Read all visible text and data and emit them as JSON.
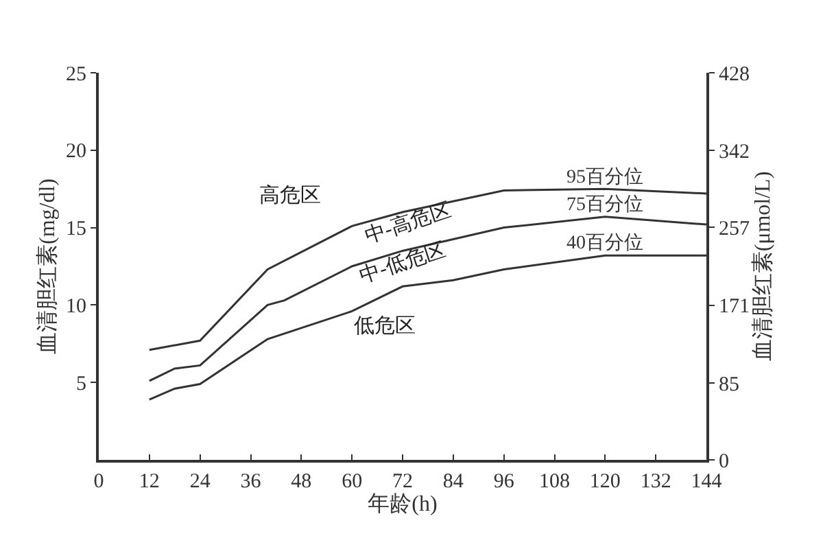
{
  "chart_data": {
    "type": "line",
    "xlabel": "年龄(h)",
    "ylabel": "血清胆红素(mg/dl)",
    "y2label": "血清胆红素(μmol/L)",
    "xlim": [
      0,
      144
    ],
    "xticks": [
      0,
      12,
      24,
      36,
      48,
      60,
      72,
      84,
      96,
      108,
      120,
      132,
      144
    ],
    "ylim": [
      0,
      25
    ],
    "yticks": [
      5,
      10,
      15,
      20,
      25
    ],
    "y2lim": [
      0,
      428
    ],
    "y2ticks": [
      0,
      85,
      171,
      257,
      342,
      428
    ],
    "series": [
      {
        "name": "95百分位",
        "color": "#333333",
        "x": [
          12,
          24,
          40,
          60,
          72,
          96,
          120,
          144
        ],
        "values": [
          7.1,
          7.7,
          12.3,
          15.1,
          16.0,
          17.4,
          17.5,
          17.2
        ]
      },
      {
        "name": "75百分位",
        "color": "#333333",
        "x": [
          12,
          18,
          24,
          40,
          44,
          60,
          72,
          96,
          120,
          144
        ],
        "values": [
          5.1,
          5.9,
          6.1,
          10.0,
          10.3,
          12.5,
          13.5,
          15.0,
          15.7,
          15.2
        ]
      },
      {
        "name": "40百分位",
        "color": "#333333",
        "x": [
          12,
          18,
          24,
          40,
          60,
          72,
          84,
          96,
          120,
          144
        ],
        "values": [
          3.9,
          4.6,
          4.9,
          7.8,
          9.6,
          11.2,
          11.6,
          12.3,
          13.2,
          13.2
        ]
      }
    ],
    "annotations": [
      "高危区",
      "中-高危区",
      "中-低危区",
      "低危区"
    ],
    "legend": false,
    "marker": "none",
    "line_style": "solid"
  }
}
